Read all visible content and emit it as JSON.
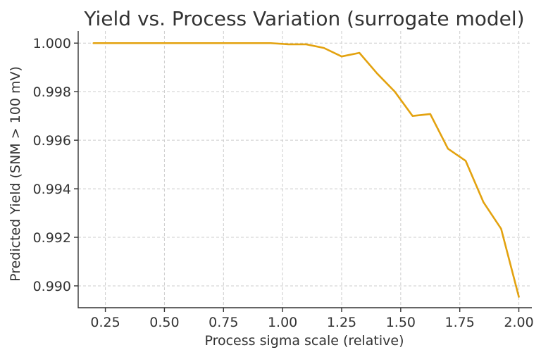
{
  "chart_data": {
    "type": "line",
    "title": "Yield vs. Process Variation (surrogate model)",
    "xlabel": "Process sigma scale (relative)",
    "ylabel": "Predicted Yield (SNM > 100 mV)",
    "xlim": [
      0.135,
      2.055
    ],
    "ylim": [
      0.9891,
      1.0005
    ],
    "xticks": [
      0.25,
      0.5,
      0.75,
      1.0,
      1.25,
      1.5,
      1.75,
      2.0
    ],
    "xtick_labels": [
      "0.25",
      "0.50",
      "0.75",
      "1.00",
      "1.25",
      "1.50",
      "1.75",
      "2.00"
    ],
    "yticks": [
      0.99,
      0.992,
      0.994,
      0.996,
      0.998,
      1.0
    ],
    "ytick_labels": [
      "0.990",
      "0.992",
      "0.994",
      "0.996",
      "0.998",
      "1.000"
    ],
    "grid": true,
    "series": [
      {
        "color": "#E3A20F",
        "x": [
          0.2,
          0.275,
          0.35,
          0.425,
          0.5,
          0.575,
          0.65,
          0.725,
          0.8,
          0.875,
          0.95,
          1.025,
          1.1,
          1.175,
          1.25,
          1.325,
          1.4,
          1.475,
          1.55,
          1.625,
          1.7,
          1.775,
          1.85,
          1.925,
          2.0
        ],
        "y": [
          1.0,
          1.0,
          1.0,
          1.0,
          1.0,
          1.0,
          1.0,
          1.0,
          1.0,
          1.0,
          1.0,
          0.99995,
          0.99995,
          0.9998,
          0.99945,
          0.9996,
          0.99875,
          0.998,
          0.997,
          0.99708,
          0.99565,
          0.99515,
          0.99345,
          0.99235,
          0.98955
        ]
      }
    ]
  }
}
